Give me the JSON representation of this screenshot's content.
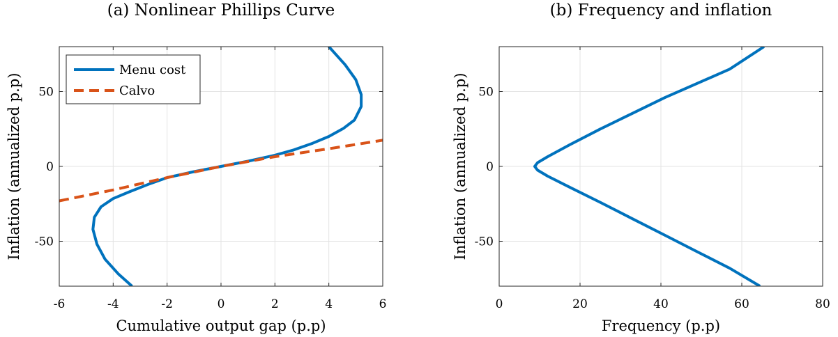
{
  "chart_data": [
    {
      "type": "line",
      "title": "(a) Nonlinear Phillips Curve",
      "xlabel": "Cumulative output gap (p.p)",
      "ylabel": "Inflation (annualized p.p)",
      "xlim": [
        -6,
        6
      ],
      "ylim": [
        -80,
        80
      ],
      "xticks": [
        -6,
        -4,
        -2,
        0,
        2,
        4,
        6
      ],
      "xtick_labels": [
        "-6",
        "-4",
        "-2",
        "0",
        "2",
        "4",
        "6"
      ],
      "yticks": [
        -50,
        0,
        50
      ],
      "ytick_labels": [
        "-50",
        "0",
        "50"
      ],
      "grid": true,
      "legend": "top-left",
      "series": [
        {
          "name": "Menu cost",
          "color": "#0072BD",
          "style": "solid",
          "points": [
            [
              -3.3,
              -80
            ],
            [
              -3.8,
              -72
            ],
            [
              -4.3,
              -62
            ],
            [
              -4.6,
              -52
            ],
            [
              -4.75,
              -42
            ],
            [
              -4.7,
              -34
            ],
            [
              -4.45,
              -27
            ],
            [
              -4.0,
              -21.5
            ],
            [
              -3.4,
              -17
            ],
            [
              -2.7,
              -12
            ],
            [
              -2.0,
              -7.5
            ],
            [
              -1.0,
              -3.5
            ],
            [
              0.0,
              0.0
            ],
            [
              1.0,
              3.5
            ],
            [
              2.0,
              7.5
            ],
            [
              2.7,
              11
            ],
            [
              3.4,
              15.5
            ],
            [
              4.0,
              20
            ],
            [
              4.55,
              25.5
            ],
            [
              4.95,
              31
            ],
            [
              5.2,
              40
            ],
            [
              5.2,
              48
            ],
            [
              5.0,
              58
            ],
            [
              4.6,
              68
            ],
            [
              4.0,
              80
            ]
          ]
        },
        {
          "name": "Calvo",
          "color": "#D95319",
          "style": "dashed",
          "points": [
            [
              -6,
              -23
            ],
            [
              -4,
              -15.7
            ],
            [
              -2,
              -7.5
            ],
            [
              0,
              0
            ],
            [
              2,
              6.5
            ],
            [
              4,
              11.8
            ],
            [
              6,
              17.5
            ]
          ]
        }
      ]
    },
    {
      "type": "line",
      "title": "(b) Frequency and inflation",
      "xlabel": "Frequency (p.p)",
      "ylabel": "Inflation (annualized p.p)",
      "xlim": [
        0,
        80
      ],
      "ylim": [
        -80,
        80
      ],
      "xticks": [
        0,
        20,
        40,
        60,
        80
      ],
      "xtick_labels": [
        "0",
        "20",
        "40",
        "60",
        "80"
      ],
      "yticks": [
        -50,
        0,
        50
      ],
      "ytick_labels": [
        "-50",
        "0",
        "50"
      ],
      "grid": true,
      "series": [
        {
          "color": "#0072BD",
          "style": "solid",
          "points": [
            [
              64.5,
              -80
            ],
            [
              57,
              -68
            ],
            [
              49,
              -57
            ],
            [
              41,
              -46
            ],
            [
              33,
              -35
            ],
            [
              25,
              -24
            ],
            [
              17.5,
              -14
            ],
            [
              12,
              -6.5
            ],
            [
              9.5,
              -2.5
            ],
            [
              8.8,
              0
            ],
            [
              9.5,
              2.5
            ],
            [
              12,
              6.5
            ],
            [
              17.5,
              14.5
            ],
            [
              25,
              25
            ],
            [
              33,
              35.5
            ],
            [
              41,
              46
            ],
            [
              49,
              55.5
            ],
            [
              57,
              65
            ],
            [
              65.5,
              80
            ]
          ]
        }
      ]
    }
  ]
}
